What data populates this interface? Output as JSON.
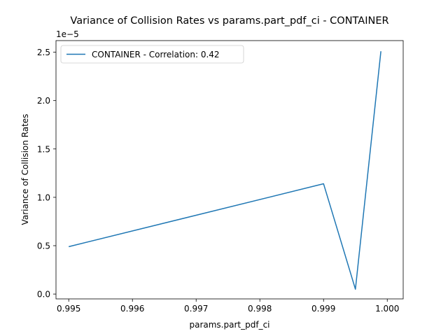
{
  "chart_data": {
    "type": "line",
    "title": "Variance of Collision Rates vs params.part_pdf_ci - CONTAINER",
    "xlabel": "params.part_pdf_ci",
    "ylabel": "Variance of Collision Rates",
    "y_offset_label": "1e−5",
    "xlim": [
      0.9948,
      1.00025
    ],
    "ylim": [
      -0.05,
      2.62
    ],
    "x_ticks": [
      0.995,
      0.996,
      0.997,
      0.998,
      0.999,
      1.0
    ],
    "x_tick_labels": [
      "0.995",
      "0.996",
      "0.997",
      "0.998",
      "0.999",
      "1.000"
    ],
    "y_ticks": [
      0.0,
      0.5,
      1.0,
      1.5,
      2.0,
      2.5
    ],
    "y_tick_labels": [
      "0.0",
      "0.5",
      "1.0",
      "1.5",
      "2.0",
      "2.5"
    ],
    "series": [
      {
        "name": "CONTAINER - Correlation: 0.42",
        "color": "#1f77b4",
        "x": [
          0.995,
          0.999,
          0.9995,
          0.9999
        ],
        "y": [
          0.49,
          1.14,
          0.05,
          2.51
        ]
      }
    ],
    "legend_position": "upper-left",
    "grid": false
  }
}
